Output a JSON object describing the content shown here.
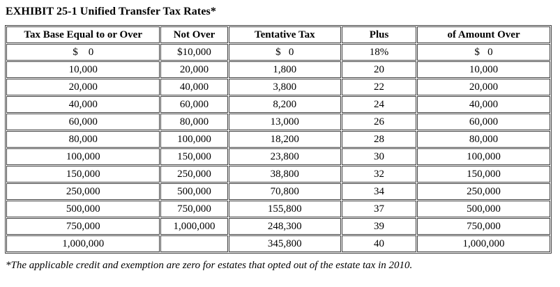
{
  "title": "EXHIBIT 25-1 Unified Transfer Tax Rates*",
  "table": {
    "columns": [
      "Tax Base Equal to or Over",
      "Not Over",
      "Tentative Tax",
      "Plus",
      "of Amount Over"
    ],
    "rows": [
      [
        "$    0",
        "$10,000",
        "$   0",
        "18%",
        "$   0"
      ],
      [
        "10,000",
        "20,000",
        "1,800",
        "20",
        "10,000"
      ],
      [
        "20,000",
        "40,000",
        "3,800",
        "22",
        "20,000"
      ],
      [
        "40,000",
        "60,000",
        "8,200",
        "24",
        "40,000"
      ],
      [
        "60,000",
        "80,000",
        "13,000",
        "26",
        "60,000"
      ],
      [
        "80,000",
        "100,000",
        "18,200",
        "28",
        "80,000"
      ],
      [
        "100,000",
        "150,000",
        "23,800",
        "30",
        "100,000"
      ],
      [
        "150,000",
        "250,000",
        "38,800",
        "32",
        "150,000"
      ],
      [
        "250,000",
        "500,000",
        "70,800",
        "34",
        "250,000"
      ],
      [
        "500,000",
        "750,000",
        "155,800",
        "37",
        "500,000"
      ],
      [
        "750,000",
        "1,000,000",
        "248,300",
        "39",
        "750,000"
      ],
      [
        "1,000,000",
        "",
        "345,800",
        "40",
        "1,000,000"
      ]
    ]
  },
  "footnote": "*The applicable credit and exemption are zero for estates that opted out of the estate tax in 2010.",
  "colors": {
    "table_border": "#3f3f3f",
    "text": "#000000",
    "background": "#ffffff"
  }
}
